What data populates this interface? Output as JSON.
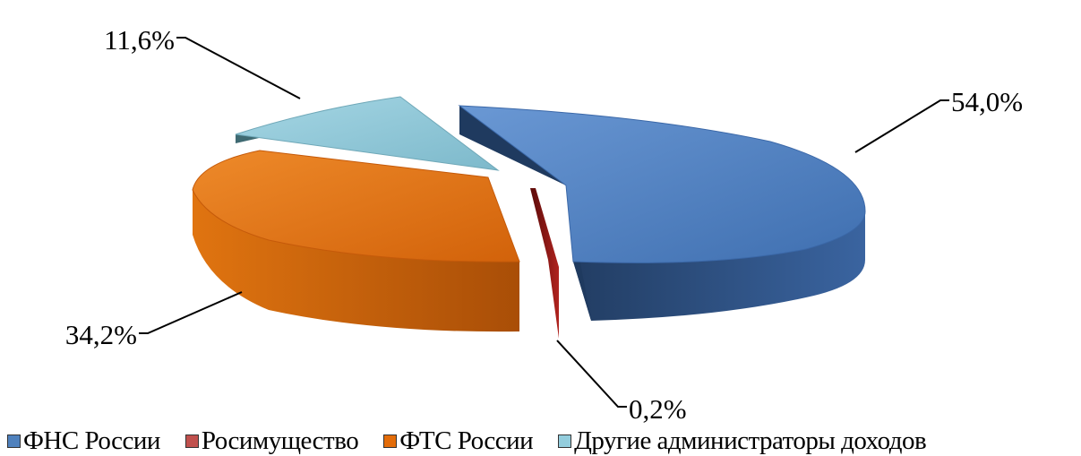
{
  "chart_data": {
    "type": "pie",
    "title": "",
    "categories": [
      "ФНС России",
      "Росимущество",
      "ФТС России",
      "Другие администраторы доходов"
    ],
    "values": [
      54.0,
      0.2,
      34.2,
      11.6
    ],
    "value_labels": [
      "54,0%",
      "0,2%",
      "34,2%",
      "11,6%"
    ],
    "colors": [
      "#4f81bd",
      "#c0504d",
      "#e36c09",
      "#93cddd"
    ],
    "legend_position": "bottom",
    "style": "3d-exploded"
  },
  "legend": {
    "items": [
      {
        "label": "ФНС России",
        "color": "#4f81bd"
      },
      {
        "label": "Росимущество",
        "color": "#c0504d"
      },
      {
        "label": "ФТС России",
        "color": "#e36c09"
      },
      {
        "label": "Другие администраторы доходов",
        "color": "#93cddd"
      }
    ]
  }
}
